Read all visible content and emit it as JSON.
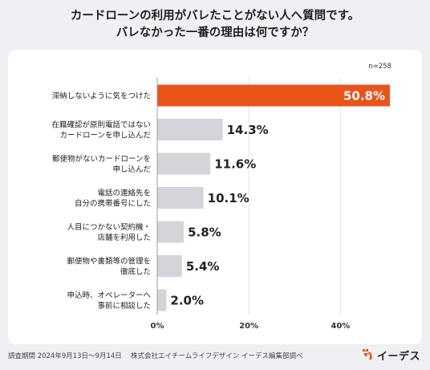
{
  "title_lines": [
    "カードローンの利用がバレたことがない人へ質問です。",
    "バレなかった一番の理由は何ですか？"
  ],
  "footer": "調査期間 2024年9月13日〜9月14日　 株式会社エイチームライフデザイン イーデス編集部調べ",
  "logo": {
    "text": "イーデス",
    "icon": "iedes-logo-mark-icon",
    "color": "#e9541b"
  },
  "chart_data": {
    "type": "bar",
    "orientation": "horizontal",
    "sample_note": "n=258",
    "categories": [
      [
        "滞納しないように気をつけた"
      ],
      [
        "在籍確認が原則電話ではない",
        "カードローンを申し込んだ"
      ],
      [
        "郵便物がないカードローンを",
        "申し込んだ"
      ],
      [
        "電話の連絡先を",
        "自分の携帯番号にした"
      ],
      [
        "人目につかない契約機・",
        "店舗を利用した"
      ],
      [
        "郵便物や書類等の管理を",
        "徹底した"
      ],
      [
        "申込時、オペレーターへ",
        "事前に相談した"
      ]
    ],
    "values": [
      50.8,
      14.3,
      11.6,
      10.1,
      5.8,
      5.4,
      2.0
    ],
    "value_labels": [
      "50.8%",
      "14.3%",
      "11.6%",
      "10.1%",
      "5.8%",
      "5.4%",
      "2.0%"
    ],
    "xlim": [
      0,
      50.8
    ],
    "x_ticks": [
      0,
      20,
      40
    ],
    "x_tick_labels": [
      "0%",
      "20%",
      "40%"
    ],
    "highlight_color": "#e9541b",
    "bar_color": "#d3d5db",
    "grid": true
  }
}
